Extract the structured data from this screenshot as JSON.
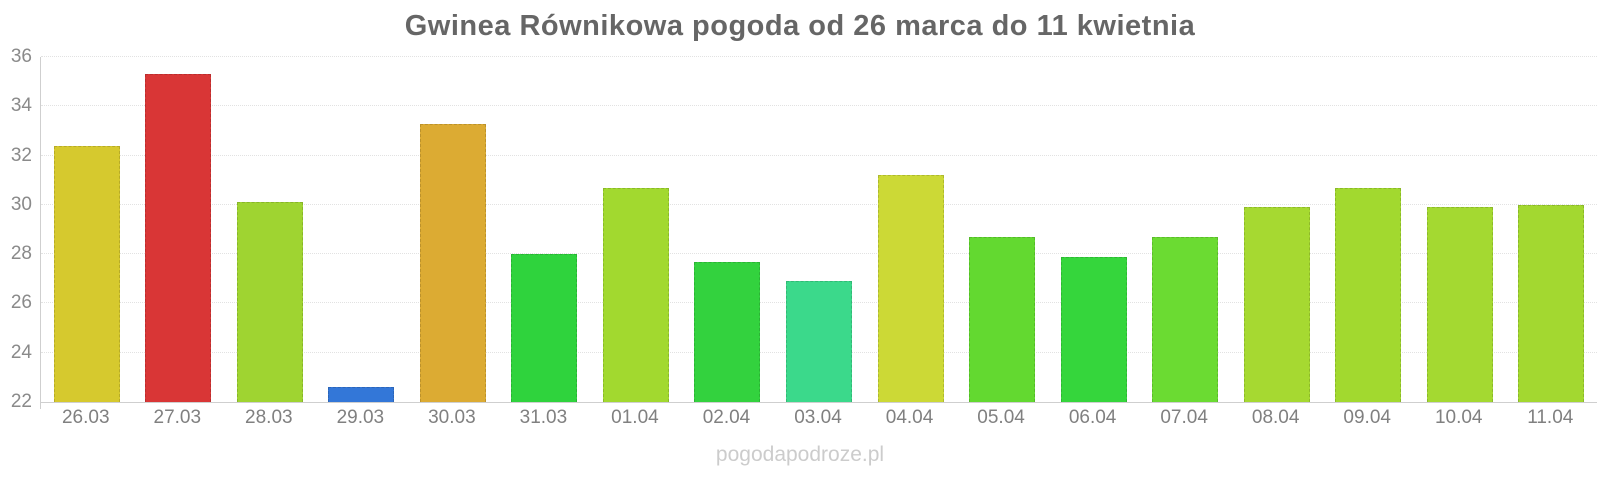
{
  "page": {
    "title": "Gwinea Równikowa pogoda od 26 marca do 11 kwietnia",
    "watermark": "pogodapodroze.pl"
  },
  "chart_data": {
    "type": "bar",
    "title": "Gwinea Równikowa pogoda od 26 marca do 11 kwietnia",
    "xlabel": "",
    "ylabel": "",
    "categories": [
      "26.03",
      "27.03",
      "28.03",
      "29.03",
      "30.03",
      "31.03",
      "01.04",
      "02.04",
      "03.04",
      "04.04",
      "05.04",
      "06.04",
      "07.04",
      "08.04",
      "09.04",
      "10.04",
      "11.04"
    ],
    "values": [
      32.4,
      35.3,
      30.1,
      22.6,
      33.3,
      28.0,
      30.7,
      27.7,
      26.9,
      31.2,
      28.7,
      27.9,
      28.7,
      29.9,
      30.7,
      29.9,
      30.0
    ],
    "bar_colors": [
      "#d6c92e",
      "#d93636",
      "#9fd431",
      "#3377d8",
      "#dcab33",
      "#2fd33d",
      "#a2d92f",
      "#33d23e",
      "#3bd98b",
      "#ccd936",
      "#63d930",
      "#35d63c",
      "#6bdb32",
      "#a6d931",
      "#a2d92f",
      "#a4d931",
      "#a3d830"
    ],
    "ylim": [
      22,
      36
    ],
    "yticks": [
      22,
      24,
      26,
      28,
      30,
      32,
      34,
      36
    ],
    "grid": true,
    "legend": false,
    "colors": {
      "title": "#666666",
      "axis_line": "#cfcfcf",
      "grid_line": "#e2e2e2",
      "tick_label": "#8a8a8a",
      "watermark": "#cccccc",
      "background": "#ffffff"
    }
  }
}
